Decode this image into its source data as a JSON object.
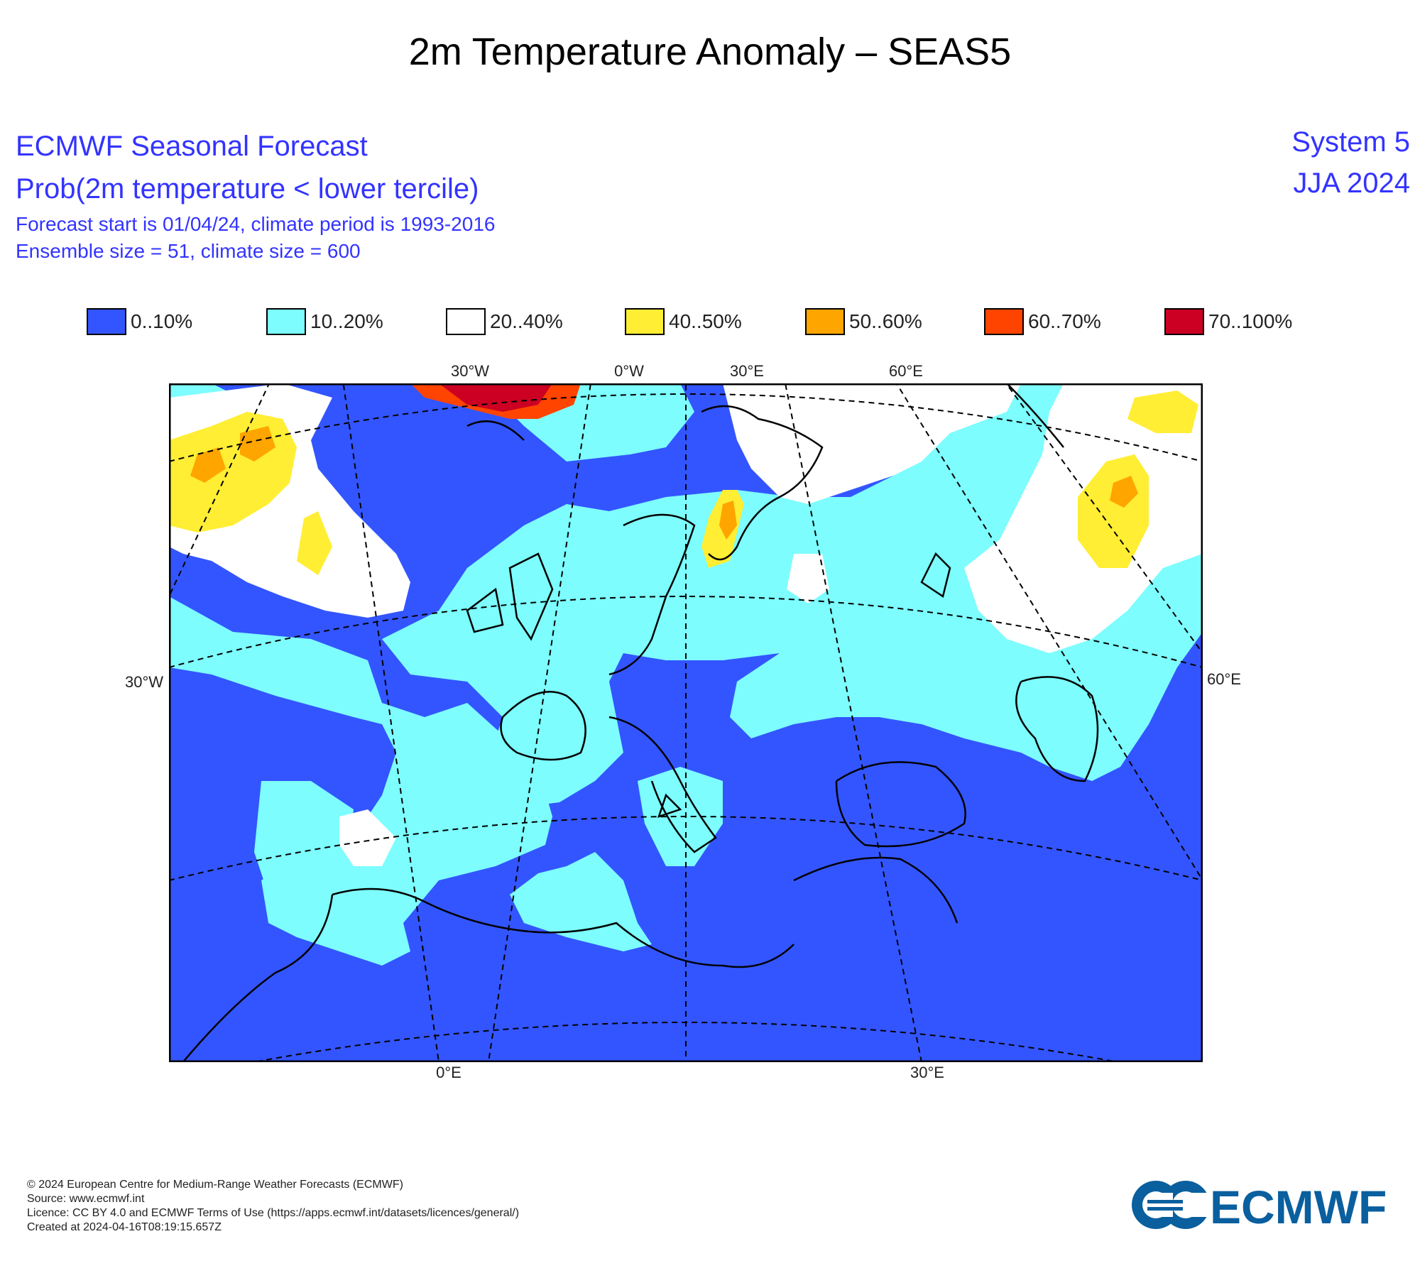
{
  "page_title": "2m Temperature Anomaly – SEAS5",
  "header": {
    "line1": "ECMWF Seasonal Forecast",
    "line2": "Prob(2m temperature < lower tercile)",
    "line3": "Forecast start is 01/04/24, climate period is 1993-2016",
    "line4": "Ensemble size = 51, climate size = 600",
    "system": "System 5",
    "season": "JJA 2024"
  },
  "legend": [
    {
      "label": "0..10%",
      "color": "#3355ff"
    },
    {
      "label": "10..20%",
      "color": "#7dfdfd"
    },
    {
      "label": "20..40%",
      "color": "#ffffff"
    },
    {
      "label": "40..50%",
      "color": "#ffee33"
    },
    {
      "label": "50..60%",
      "color": "#ffa500"
    },
    {
      "label": "60..70%",
      "color": "#ff4400"
    },
    {
      "label": "70..100%",
      "color": "#cc0022"
    }
  ],
  "map_axes": {
    "top": [
      "30°W",
      "0°W",
      "30°E",
      "60°E"
    ],
    "bottom": [
      "0°E",
      "30°E"
    ],
    "left": "30°W",
    "right": "60°E"
  },
  "footer": {
    "copyright": "© 2024 European Centre for Medium-Range Weather Forecasts (ECMWF)",
    "source": "Source: www.ecmwf.int",
    "licence": "Licence: CC BY 4.0 and ECMWF Terms of Use (https://apps.ecmwf.int/datasets/licences/general/)",
    "created": "Created at 2024-04-16T08:19:15.657Z",
    "logo_text": "ECMWF"
  },
  "colors": {
    "header_text": "#3333ff",
    "logo_blue": "#0a5f9e"
  }
}
